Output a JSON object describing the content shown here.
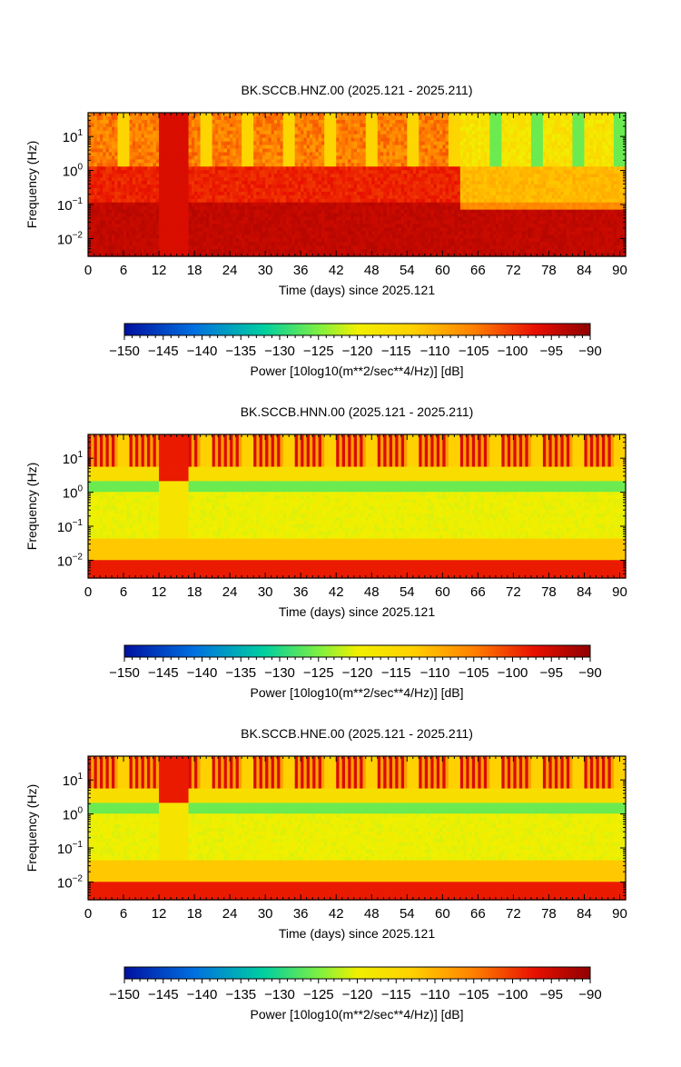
{
  "chart_data": [
    {
      "type": "heatmap",
      "title": "BK.SCCB.HNZ.00 (2025.121 - 2025.211)",
      "xlabel": "Time (days) since 2025.121",
      "ylabel": "Frequency (Hz)",
      "xlim": [
        0,
        91
      ],
      "ylim": [
        0.003,
        50
      ],
      "yscale": "log",
      "xticks": [
        "0",
        "6",
        "12",
        "18",
        "24",
        "30",
        "36",
        "42",
        "48",
        "54",
        "60",
        "66",
        "72",
        "78",
        "84",
        "90"
      ],
      "yticks": [
        {
          "value": 10,
          "label": "10",
          "exp": "1"
        },
        {
          "value": 1,
          "label": "10",
          "exp": "0"
        },
        {
          "value": 0.1,
          "label": "10",
          "exp": "−1"
        },
        {
          "value": 0.01,
          "label": "10",
          "exp": "−2"
        }
      ],
      "profile": "vertical",
      "colorbar": {
        "label": "Power [10log10(m**2/sec**4/Hz)] [dB]",
        "range": [
          -150,
          -90
        ],
        "ticks": [
          "−150",
          "−145",
          "−140",
          "−135",
          "−130",
          "−125",
          "−120",
          "−115",
          "−110",
          "−105",
          "−100",
          "−95",
          "−90"
        ]
      }
    },
    {
      "type": "heatmap",
      "title": "BK.SCCB.HNN.00 (2025.121 - 2025.211)",
      "xlabel": "Time (days) since 2025.121",
      "ylabel": "Frequency (Hz)",
      "xlim": [
        0,
        91
      ],
      "ylim": [
        0.003,
        50
      ],
      "yscale": "log",
      "xticks": [
        "0",
        "6",
        "12",
        "18",
        "24",
        "30",
        "36",
        "42",
        "48",
        "54",
        "60",
        "66",
        "72",
        "78",
        "84",
        "90"
      ],
      "yticks": [
        {
          "value": 10,
          "label": "10",
          "exp": "1"
        },
        {
          "value": 1,
          "label": "10",
          "exp": "0"
        },
        {
          "value": 0.1,
          "label": "10",
          "exp": "−1"
        },
        {
          "value": 0.01,
          "label": "10",
          "exp": "−2"
        }
      ],
      "profile": "horizontal",
      "colorbar": {
        "label": "Power [10log10(m**2/sec**4/Hz)] [dB]",
        "range": [
          -150,
          -90
        ],
        "ticks": [
          "−150",
          "−145",
          "−140",
          "−135",
          "−130",
          "−125",
          "−120",
          "−115",
          "−110",
          "−105",
          "−100",
          "−95",
          "−90"
        ]
      }
    },
    {
      "type": "heatmap",
      "title": "BK.SCCB.HNE.00 (2025.121 - 2025.211)",
      "xlabel": "Time (days) since 2025.121",
      "ylabel": "Frequency (Hz)",
      "xlim": [
        0,
        91
      ],
      "ylim": [
        0.003,
        50
      ],
      "yscale": "log",
      "xticks": [
        "0",
        "6",
        "12",
        "18",
        "24",
        "30",
        "36",
        "42",
        "48",
        "54",
        "60",
        "66",
        "72",
        "78",
        "84",
        "90"
      ],
      "yticks": [
        {
          "value": 10,
          "label": "10",
          "exp": "1"
        },
        {
          "value": 1,
          "label": "10",
          "exp": "0"
        },
        {
          "value": 0.1,
          "label": "10",
          "exp": "−1"
        },
        {
          "value": 0.01,
          "label": "10",
          "exp": "−2"
        }
      ],
      "profile": "horizontal",
      "colorbar": {
        "label": "Power [10log10(m**2/sec**4/Hz)] [dB]",
        "range": [
          -150,
          -90
        ],
        "ticks": [
          "−150",
          "−145",
          "−140",
          "−135",
          "−130",
          "−125",
          "−120",
          "−115",
          "−110",
          "−105",
          "−100",
          "−95",
          "−90"
        ]
      }
    }
  ]
}
